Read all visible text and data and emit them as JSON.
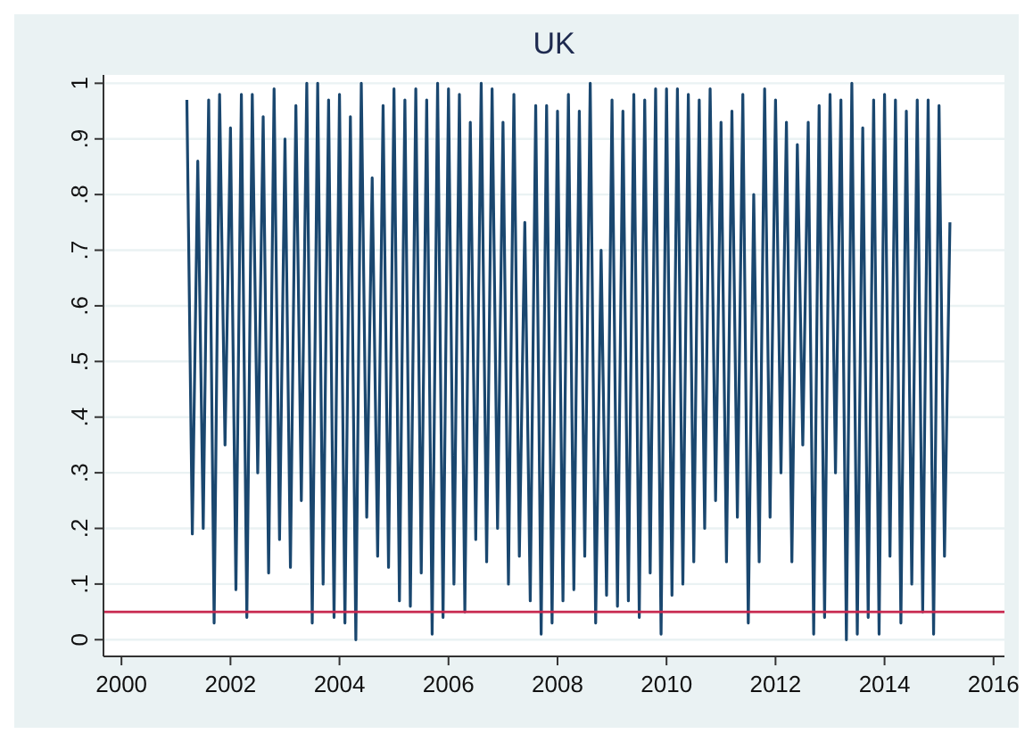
{
  "chart_data": {
    "type": "line",
    "title": "UK",
    "x": [
      2001.2,
      2001.3,
      2001.4,
      2001.5,
      2001.6,
      2001.7,
      2001.8,
      2001.9,
      2002.0,
      2002.1,
      2002.2,
      2002.3,
      2002.4,
      2002.5,
      2002.6,
      2002.7,
      2002.8,
      2002.9,
      2003.0,
      2003.1,
      2003.2,
      2003.3,
      2003.4,
      2003.5,
      2003.6,
      2003.7,
      2003.8,
      2003.9,
      2004.0,
      2004.1,
      2004.2,
      2004.3,
      2004.4,
      2004.5,
      2004.6,
      2004.7,
      2004.8,
      2004.9,
      2005.0,
      2005.1,
      2005.2,
      2005.3,
      2005.4,
      2005.5,
      2005.6,
      2005.7,
      2005.8,
      2005.9,
      2006.0,
      2006.1,
      2006.2,
      2006.3,
      2006.4,
      2006.5,
      2006.6,
      2006.7,
      2006.8,
      2006.9,
      2007.0,
      2007.1,
      2007.2,
      2007.3,
      2007.4,
      2007.5,
      2007.6,
      2007.7,
      2007.8,
      2007.9,
      2008.0,
      2008.1,
      2008.2,
      2008.3,
      2008.4,
      2008.5,
      2008.6,
      2008.7,
      2008.8,
      2008.9,
      2009.0,
      2009.1,
      2009.2,
      2009.3,
      2009.4,
      2009.5,
      2009.6,
      2009.7,
      2009.8,
      2009.9,
      2010.0,
      2010.1,
      2010.2,
      2010.3,
      2010.4,
      2010.5,
      2010.6,
      2010.7,
      2010.8,
      2010.9,
      2011.0,
      2011.1,
      2011.2,
      2011.3,
      2011.4,
      2011.5,
      2011.6,
      2011.7,
      2011.8,
      2011.9,
      2012.0,
      2012.1,
      2012.2,
      2012.3,
      2012.4,
      2012.5,
      2012.6,
      2012.7,
      2012.8,
      2012.9,
      2013.0,
      2013.1,
      2013.2,
      2013.3,
      2013.4,
      2013.5,
      2013.6,
      2013.7,
      2013.8,
      2013.9,
      2014.0,
      2014.1,
      2014.2,
      2014.3,
      2014.4,
      2014.5,
      2014.6,
      2014.7,
      2014.8,
      2014.9,
      2015.0,
      2015.1,
      2015.2
    ],
    "series": [
      {
        "color": "#1a476f",
        "values": [
          0.97,
          0.19,
          0.86,
          0.2,
          0.97,
          0.03,
          0.98,
          0.35,
          0.92,
          0.09,
          0.98,
          0.04,
          0.98,
          0.3,
          0.94,
          0.12,
          0.99,
          0.18,
          0.9,
          0.13,
          0.96,
          0.25,
          1.0,
          0.03,
          1.0,
          0.1,
          0.97,
          0.04,
          0.98,
          0.03,
          0.94,
          0.0,
          1.0,
          0.22,
          0.83,
          0.15,
          0.96,
          0.13,
          0.99,
          0.07,
          0.97,
          0.06,
          0.99,
          0.12,
          0.97,
          0.01,
          1.0,
          0.04,
          0.99,
          0.1,
          0.98,
          0.05,
          0.93,
          0.18,
          1.0,
          0.14,
          0.99,
          0.2,
          0.93,
          0.1,
          0.98,
          0.15,
          0.75,
          0.07,
          0.96,
          0.01,
          0.96,
          0.03,
          0.95,
          0.07,
          0.98,
          0.09,
          0.95,
          0.15,
          1.0,
          0.03,
          0.7,
          0.08,
          0.97,
          0.06,
          0.95,
          0.07,
          0.98,
          0.04,
          0.97,
          0.12,
          0.99,
          0.01,
          0.99,
          0.08,
          0.99,
          0.1,
          0.98,
          0.14,
          0.97,
          0.2,
          0.99,
          0.25,
          0.93,
          0.14,
          0.95,
          0.22,
          0.98,
          0.03,
          0.8,
          0.14,
          0.99,
          0.22,
          0.97,
          0.3,
          0.93,
          0.14,
          0.89,
          0.35,
          0.93,
          0.01,
          0.96,
          0.04,
          0.98,
          0.3,
          0.97,
          0.0,
          1.0,
          0.01,
          0.92,
          0.04,
          0.97,
          0.01,
          0.98,
          0.15,
          0.97,
          0.03,
          0.95,
          0.1,
          0.97,
          0.05,
          0.97,
          0.01,
          0.96,
          0.15,
          0.75
        ]
      }
    ],
    "xlim": [
      1999.67,
      2016.2
    ],
    "xticks": [
      2000,
      2002,
      2004,
      2006,
      2008,
      2010,
      2012,
      2014,
      2016
    ],
    "ylim": [
      -0.03,
      1.015
    ],
    "yticks": [
      0,
      {
        "value": 0.1,
        "label": ".1"
      },
      {
        "value": 0.2,
        "label": ".2"
      },
      {
        "value": 0.3,
        "label": ".3"
      },
      {
        "value": 0.4,
        "label": ".4"
      },
      {
        "value": 0.5,
        "label": ".5"
      },
      {
        "value": 0.6,
        "label": ".6"
      },
      {
        "value": 0.7,
        "label": ".7"
      },
      {
        "value": 0.8,
        "label": ".8"
      },
      {
        "value": 0.9,
        "label": ".9"
      },
      1
    ],
    "grid": "y",
    "ref_lines": [
      {
        "axis": "y",
        "value": 0.05,
        "color": "#c8284f"
      }
    ]
  }
}
